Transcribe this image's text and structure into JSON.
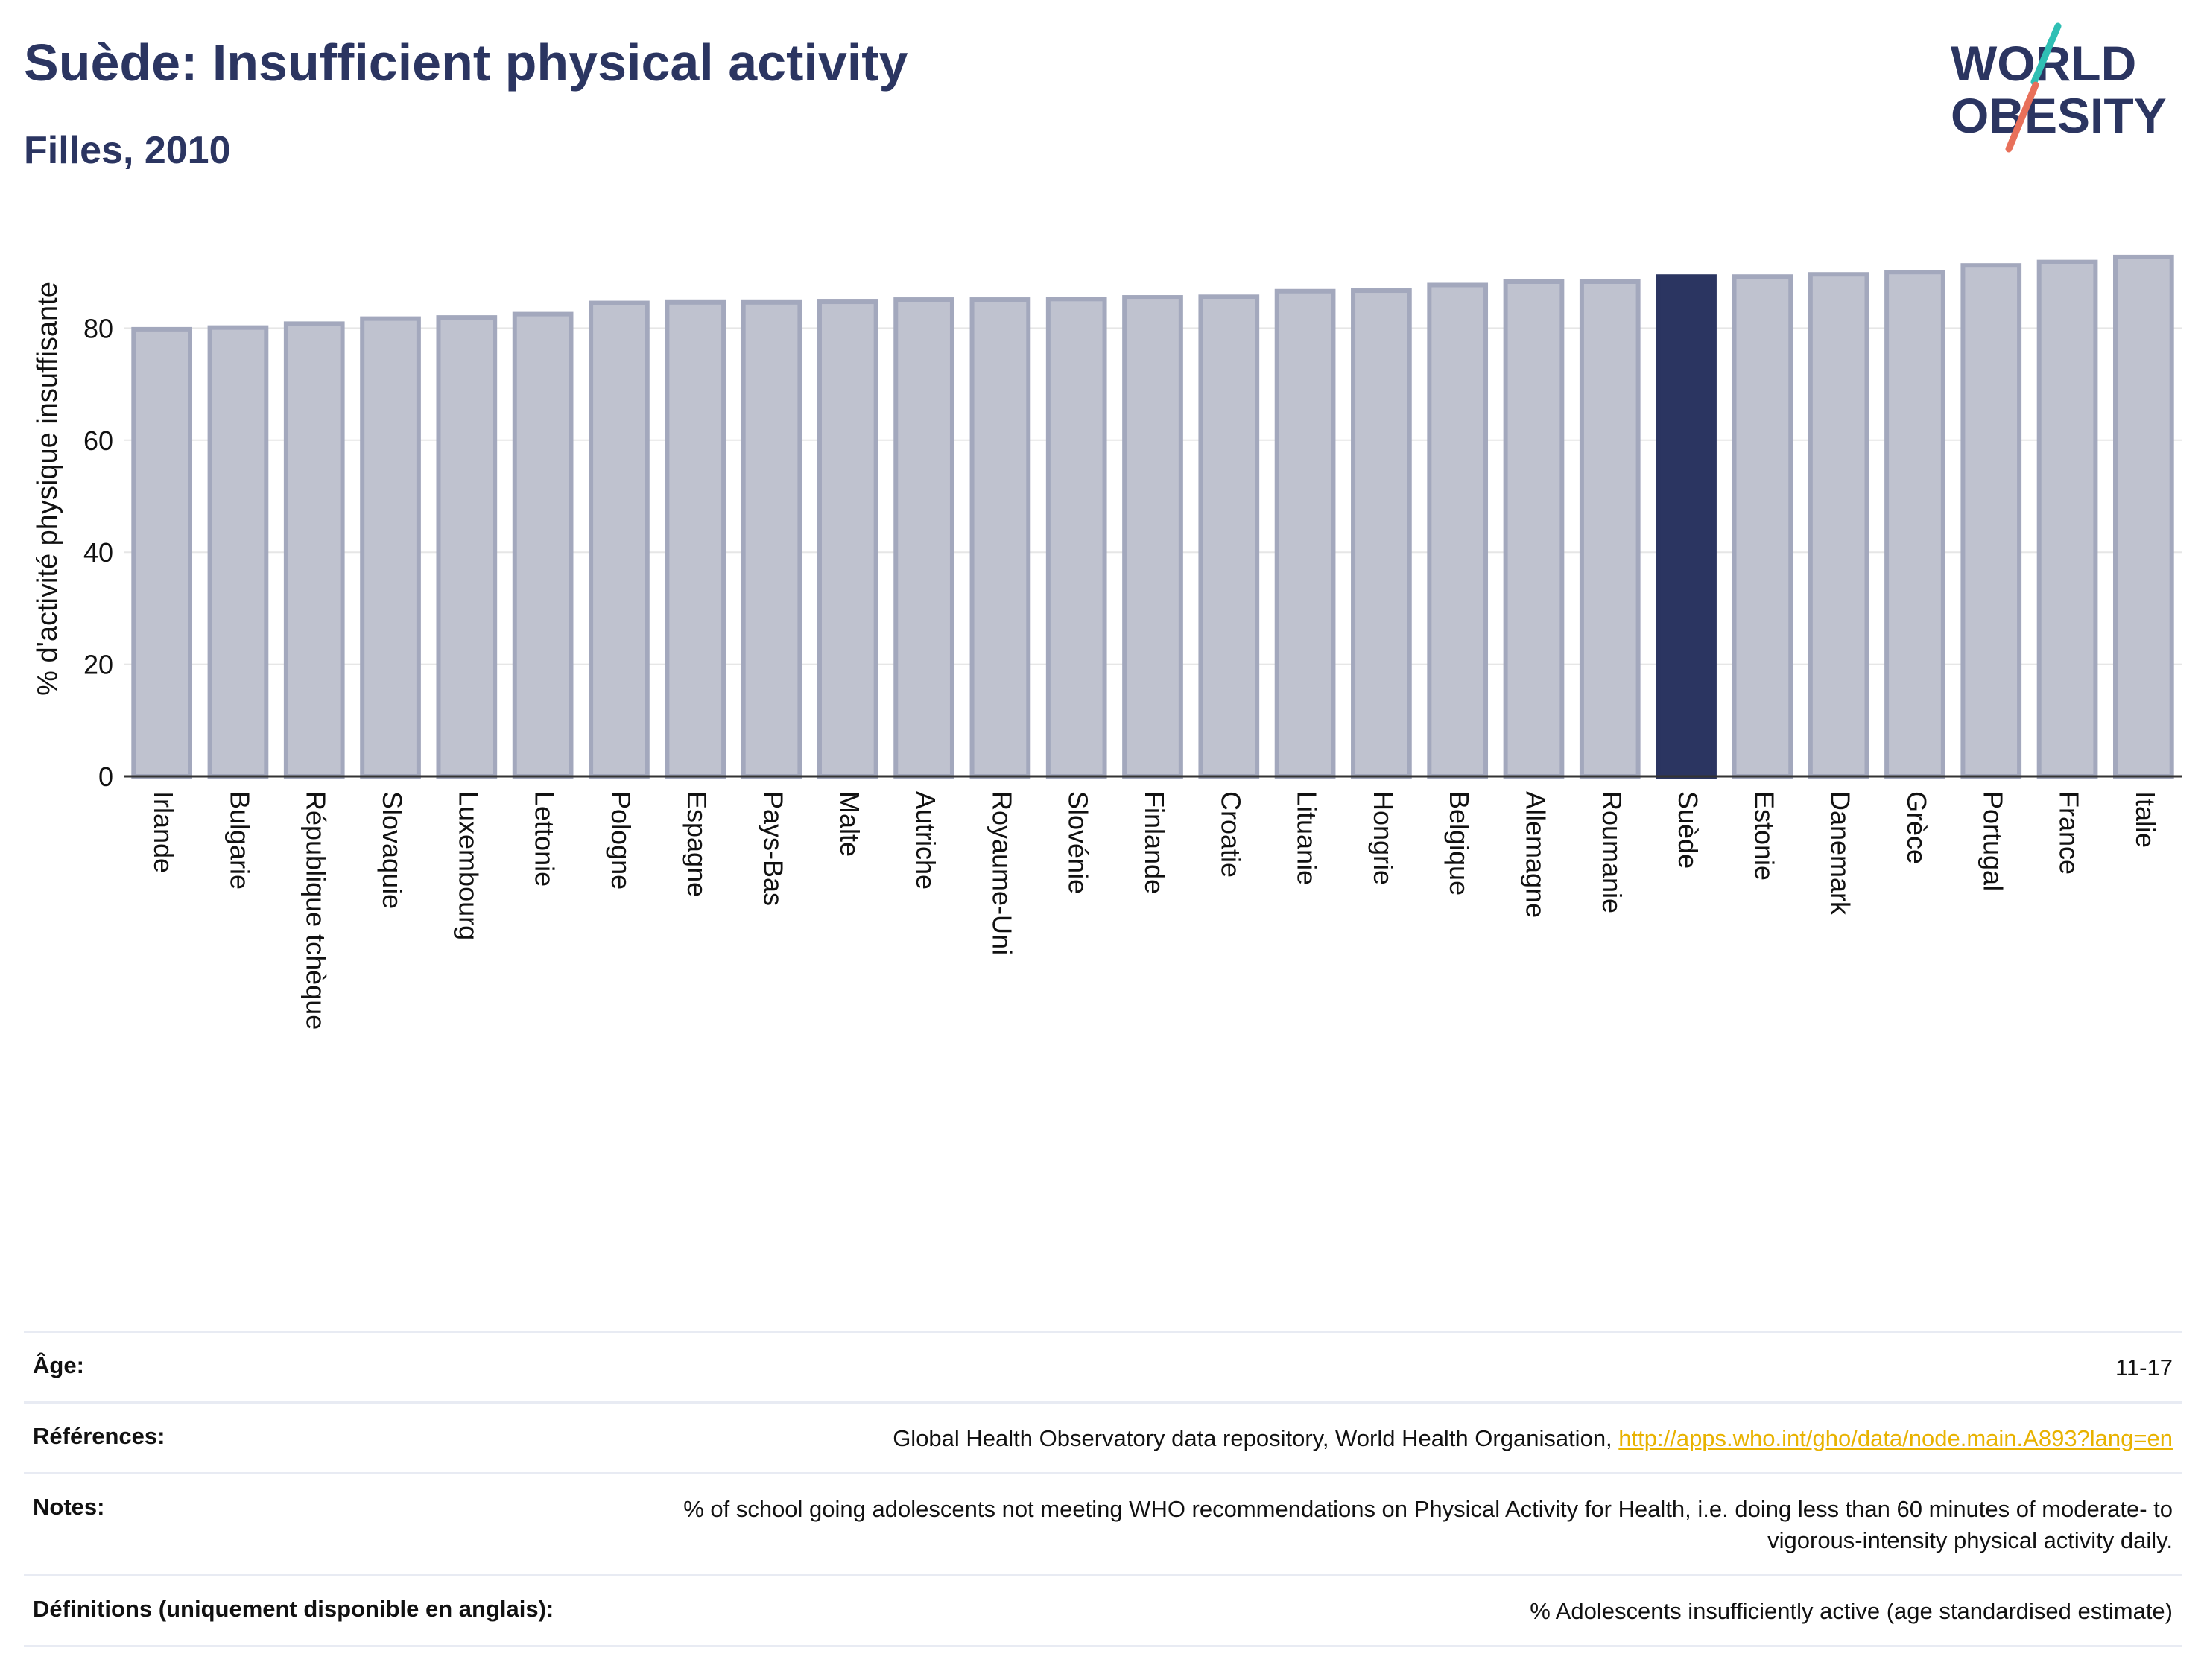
{
  "header": {
    "title": "Suède: Insufficient physical activity",
    "subtitle": "Filles, 2010"
  },
  "logo": {
    "line1": "WORLD",
    "line2": "OBESITY"
  },
  "colors": {
    "title": "#2b3561",
    "bar_fill": "#bfc2cf",
    "bar_stroke": "#a3a8bd",
    "highlight": "#2b3561",
    "link": "#e8b200",
    "logo_teal": "#2fbfb4",
    "logo_coral": "#e8705a"
  },
  "chart_data": {
    "type": "bar",
    "ylabel": "% d'activité physique insuffisante",
    "ylim": [
      0,
      100
    ],
    "yticks": [
      0,
      20,
      40,
      60,
      80
    ],
    "grid": true,
    "highlight": "Suède",
    "categories": [
      "Irlande",
      "Bulgarie",
      "République tchèque",
      "Slovaquie",
      "Luxembourg",
      "Lettonie",
      "Pologne",
      "Espagne",
      "Pays-Bas",
      "Malte",
      "Autriche",
      "Royaume-Uni",
      "Slovénie",
      "Finlande",
      "Croatie",
      "Lituanie",
      "Hongrie",
      "Belgique",
      "Allemagne",
      "Roumanie",
      "Suède",
      "Estonie",
      "Danemark",
      "Grèce",
      "Portugal",
      "France",
      "Italie"
    ],
    "values": [
      79.8,
      80.1,
      80.8,
      81.7,
      81.9,
      82.5,
      84.5,
      84.6,
      84.6,
      84.7,
      85.1,
      85.1,
      85.2,
      85.5,
      85.6,
      86.6,
      86.7,
      87.7,
      88.3,
      88.3,
      89.2,
      89.2,
      89.6,
      90.0,
      91.2,
      91.8,
      92.7
    ]
  },
  "metadata": {
    "rows": [
      {
        "label": "Âge:",
        "value": "11-17"
      },
      {
        "label": "Références:",
        "value": "Global Health Observatory data repository, World Health Organisation, ",
        "link": "http://apps.who.int/gho/data/node.main.A893?lang=en"
      },
      {
        "label": "Notes:",
        "value": "% of school going adolescents not meeting WHO recommendations on Physical Activity for Health, i.e. doing less than 60 minutes of moderate- to vigorous-intensity physical activity daily."
      },
      {
        "label": "Définitions (uniquement disponible en anglais):",
        "value": "% Adolescents insufficiently active (age standardised estimate)"
      }
    ]
  }
}
